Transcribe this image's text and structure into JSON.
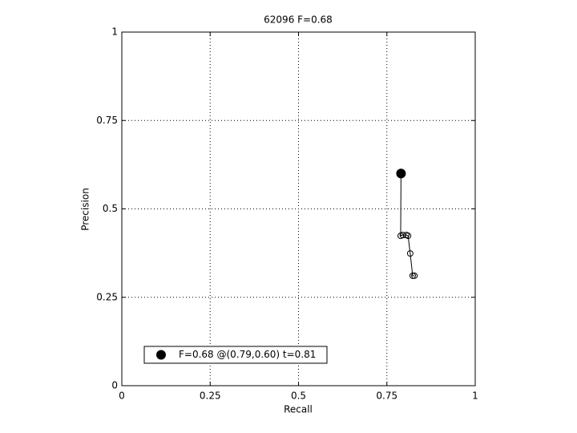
{
  "chart_data": {
    "type": "line",
    "title": "62096 F=0.68",
    "xlabel": "Recall",
    "ylabel": "Precision",
    "x": [
      0.79,
      0.789,
      0.795,
      0.805,
      0.81,
      0.816,
      0.823,
      0.828
    ],
    "values": [
      0.6,
      0.424,
      0.426,
      0.426,
      0.424,
      0.374,
      0.311,
      0.311
    ],
    "color": "#000000",
    "best": {
      "name": "F=0.68 @(0.79,0.60) t=0.81",
      "x": 0.79,
      "y": 0.6
    },
    "xlim": [
      0,
      1
    ],
    "ylim": [
      0,
      1
    ],
    "xticks": [
      0,
      0.25,
      0.5,
      0.75,
      1
    ],
    "yticks": [
      0,
      0.25,
      0.5,
      0.75,
      1
    ],
    "grid": true,
    "legend": "lower left"
  }
}
